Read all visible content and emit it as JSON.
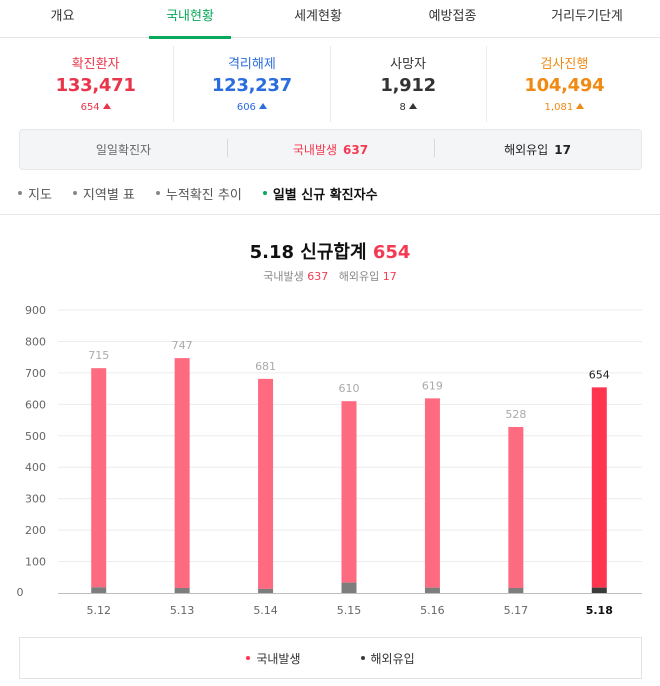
{
  "tabs": [
    {
      "label": "개요"
    },
    {
      "label": "국내현황"
    },
    {
      "label": "세계현황"
    },
    {
      "label": "예방접종"
    },
    {
      "label": "거리두기단계"
    }
  ],
  "stats": [
    {
      "label": "확진환자",
      "value": "133,471",
      "delta": "654",
      "color": "#e8354b"
    },
    {
      "label": "격리해제",
      "value": "123,237",
      "delta": "606",
      "color": "#2b6cde"
    },
    {
      "label": "사망자",
      "value": "1,912",
      "delta": "8",
      "color": "#333333"
    },
    {
      "label": "검사진행",
      "value": "104,494",
      "delta": "1,081",
      "color": "#f08a13"
    }
  ],
  "daily": {
    "label": "일일확진자",
    "domestic_label": "국내발생",
    "domestic_value": "637",
    "overseas_label": "해외유입",
    "overseas_value": "17"
  },
  "subnav": [
    {
      "label": "지도"
    },
    {
      "label": "지역별 표"
    },
    {
      "label": "누적확진 추이"
    },
    {
      "label": "일별 신규 확진자수"
    }
  ],
  "chart_header": {
    "date": "5.18",
    "title_text": "신규합계",
    "total": "654",
    "domestic_label": "국내발생",
    "domestic_value": "637",
    "overseas_label": "해외유입",
    "overseas_value": "17"
  },
  "colors": {
    "domestic": "#fe6a80",
    "domestic_today": "#ff3550",
    "overseas": "#7d7d7d",
    "overseas_today": "#3b3b3b",
    "accent": "#0aa85a"
  },
  "chart_data": {
    "type": "bar",
    "categories": [
      "5.12",
      "5.13",
      "5.14",
      "5.15",
      "5.16",
      "5.17",
      "5.18"
    ],
    "series": [
      {
        "name": "국내발생",
        "values": [
          697,
          731,
          668,
          577,
          602,
          512,
          637
        ]
      },
      {
        "name": "해외유입",
        "values": [
          18,
          16,
          13,
          33,
          17,
          16,
          17
        ]
      }
    ],
    "totals": [
      715,
      747,
      681,
      610,
      619,
      528,
      654
    ],
    "yticks": [
      0,
      100,
      200,
      300,
      400,
      500,
      600,
      700,
      800,
      900
    ],
    "ylim": [
      0,
      900
    ],
    "stacked": true,
    "legend_position": "bottom"
  },
  "legend": [
    {
      "label": "국내발생",
      "color": "#ff3550"
    },
    {
      "label": "해외유입",
      "color": "#3b3b3b"
    }
  ]
}
